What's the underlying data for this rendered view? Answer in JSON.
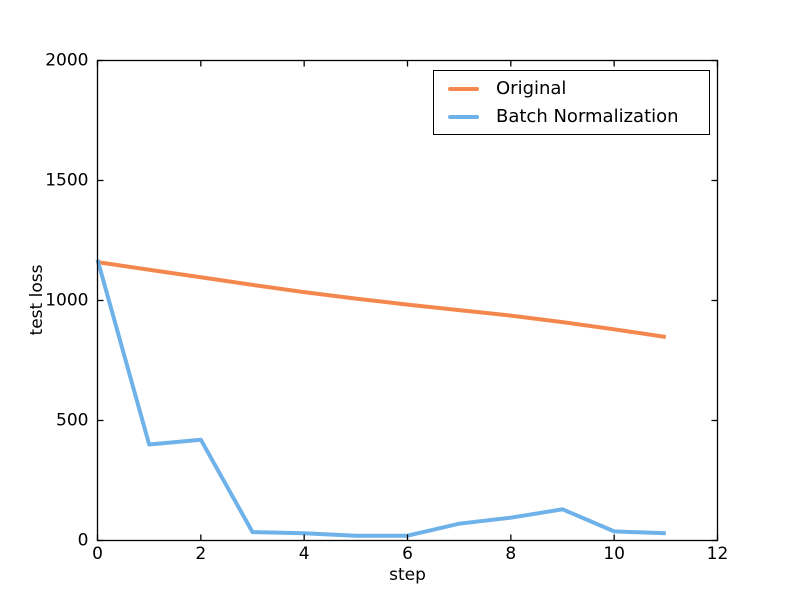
{
  "chart_data": {
    "type": "line",
    "xlabel": "step",
    "ylabel": "test loss",
    "xlim": [
      0,
      12
    ],
    "ylim": [
      0,
      2000
    ],
    "xticks": [
      0,
      2,
      4,
      6,
      8,
      10,
      12
    ],
    "yticks": [
      0,
      500,
      1000,
      1500,
      2000
    ],
    "grid": false,
    "legend_position": "upper-right",
    "x": [
      0,
      1,
      2,
      3,
      4,
      5,
      6,
      7,
      8,
      9,
      10,
      11
    ],
    "series": [
      {
        "name": "Original",
        "color": "#f4874d",
        "linewidth": 4,
        "values": [
          1160,
          1128,
          1097,
          1065,
          1035,
          1008,
          983,
          960,
          937,
          910,
          880,
          848
        ]
      },
      {
        "name": "Batch Normalization",
        "color": "#6fb2e9",
        "linewidth": 4,
        "values": [
          1170,
          400,
          420,
          35,
          30,
          20,
          20,
          70,
          95,
          130,
          38,
          30
        ]
      }
    ]
  },
  "style": {
    "axis_color": "#000000",
    "text_color": "#000000",
    "background": "#ffffff",
    "legend_border": "#000000"
  }
}
